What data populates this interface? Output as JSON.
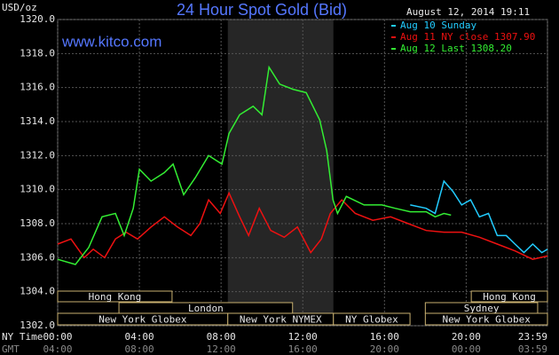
{
  "chart_data": {
    "type": "line",
    "title": "24 Hour Spot Gold (Bid)",
    "timestamp": "August 12, 2014 19:11",
    "source": "www.kitco.com",
    "y_label": "USD/oz",
    "x_label": "NY Time",
    "x2_label": "GMT",
    "xlim": [
      0,
      23.98
    ],
    "ylim": [
      1302,
      1320
    ],
    "yticks": [
      {
        "value": 1302,
        "label": "1302.0"
      },
      {
        "value": 1304,
        "label": "1304.0"
      },
      {
        "value": 1306,
        "label": "1306.0"
      },
      {
        "value": 1308,
        "label": "1308.0"
      },
      {
        "value": 1310,
        "label": "1310.0"
      },
      {
        "value": 1312,
        "label": "1312.0"
      },
      {
        "value": 1314,
        "label": "1314.0"
      },
      {
        "value": 1316,
        "label": "1316.0"
      },
      {
        "value": 1318,
        "label": "1318.0"
      },
      {
        "value": 1320,
        "label": "1320.0"
      }
    ],
    "xticks": [
      {
        "value": 0,
        "label": "00:00"
      },
      {
        "value": 4,
        "label": "04:00"
      },
      {
        "value": 8,
        "label": "08:00"
      },
      {
        "value": 12,
        "label": "12:00"
      },
      {
        "value": 16,
        "label": "16:00"
      },
      {
        "value": 20,
        "label": "20:00"
      },
      {
        "value": 23.98,
        "label": "23:59"
      }
    ],
    "gmt_labels": [
      "04:00",
      "08:00",
      "12:00",
      "16:00",
      "20:00",
      "00:00",
      "03:59"
    ],
    "grid": true,
    "legend": "top-right",
    "shade": {
      "start": 8.33,
      "end": 13.5
    },
    "sessions": [
      {
        "name": "Hong Kong",
        "start": 0,
        "end": 5.6,
        "row": 0
      },
      {
        "name": "Hong Kong",
        "start": 20.25,
        "end": 23.98,
        "row": 0
      },
      {
        "name": "London",
        "start": 3,
        "end": 11.5,
        "row": 1
      },
      {
        "name": "Sydney",
        "start": 18,
        "end": 23.5,
        "row": 1
      },
      {
        "name": "New York Globex",
        "start": 0,
        "end": 8.33,
        "row": 2
      },
      {
        "name": "New York NYMEX",
        "start": 8.33,
        "end": 13.5,
        "row": 2
      },
      {
        "name": "NY Globex",
        "start": 13.5,
        "end": 17.25,
        "row": 2
      },
      {
        "name": "New York Globex",
        "start": 18,
        "end": 23.98,
        "row": 2
      }
    ],
    "series": [
      {
        "name": "Aug 10 Sunday",
        "color": "#22ccff",
        "x": [
          17.26,
          18.04,
          18.48,
          18.91,
          19.35,
          19.78,
          20.22,
          20.65,
          21.09,
          21.52,
          21.96,
          22.39,
          22.83,
          23.26,
          23.7,
          23.98
        ],
        "values": [
          1309.1,
          1308.9,
          1308.6,
          1310.5,
          1309.9,
          1309.1,
          1309.4,
          1308.4,
          1308.6,
          1307.3,
          1307.3,
          1306.8,
          1306.3,
          1306.8,
          1306.3,
          1306.5
        ]
      },
      {
        "name": "Aug 11 NY close 1307.90",
        "color": "#ee1111",
        "x": [
          0,
          0.65,
          1.3,
          1.74,
          2.3,
          2.83,
          3.35,
          3.91,
          4.57,
          5.22,
          5.87,
          6.52,
          6.96,
          7.39,
          7.96,
          8.39,
          8.91,
          9.35,
          9.87,
          10.43,
          11.09,
          11.74,
          12.39,
          12.91,
          13.35,
          13.91,
          14.57,
          15.43,
          16.3,
          17.17,
          18.04,
          18.91,
          19.78,
          20.65,
          21.52,
          22.39,
          23.26,
          23.98
        ],
        "values": [
          1306.8,
          1307.1,
          1306,
          1306.5,
          1306,
          1307.1,
          1307.5,
          1307.1,
          1307.8,
          1308.4,
          1307.8,
          1307.3,
          1308,
          1309.4,
          1308.6,
          1309.8,
          1308.4,
          1307.3,
          1308.9,
          1307.6,
          1307.2,
          1307.8,
          1306.3,
          1307.1,
          1308.6,
          1309.4,
          1308.6,
          1308.2,
          1308.4,
          1308,
          1307.6,
          1307.5,
          1307.5,
          1307.2,
          1306.8,
          1306.4,
          1305.9,
          1306.1
        ]
      },
      {
        "name": "Aug 12 Last 1308.20",
        "color": "#33ee33",
        "x": [
          0,
          0.87,
          1.52,
          2.17,
          2.83,
          3.26,
          3.7,
          4.0,
          4.57,
          5.22,
          5.65,
          6.17,
          6.74,
          7.39,
          8.04,
          8.39,
          8.91,
          9.57,
          10.0,
          10.35,
          10.87,
          11.52,
          12.17,
          12.83,
          13.17,
          13.48,
          13.7,
          14.13,
          15.0,
          15.87,
          16.52,
          17.26,
          18.04,
          18.48,
          18.91,
          19.26
        ],
        "values": [
          1305.9,
          1305.6,
          1306.6,
          1308.4,
          1308.6,
          1307.3,
          1308.9,
          1311.2,
          1310.5,
          1311,
          1311.5,
          1309.7,
          1310.7,
          1312,
          1311.5,
          1313.3,
          1314.4,
          1314.9,
          1314.4,
          1317.2,
          1316.2,
          1315.9,
          1315.7,
          1314.1,
          1312.3,
          1309.4,
          1308.6,
          1309.6,
          1309.1,
          1309.1,
          1308.9,
          1308.7,
          1308.7,
          1308.4,
          1308.6,
          1308.5
        ]
      }
    ]
  }
}
